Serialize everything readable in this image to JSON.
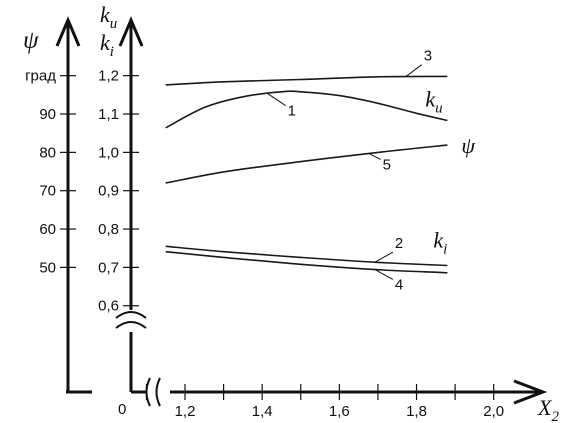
{
  "chart_data": {
    "type": "line",
    "xlabel": "X",
    "xlabel_sub": "2",
    "x_origin_label": "0",
    "x_ticks": [
      "1,2",
      "1,4",
      "1,6",
      "1,8",
      "2,0"
    ],
    "k_axis_title": {
      "line1": "k",
      "line1_sub": "u",
      "line2": "k",
      "line2_sub": "i"
    },
    "k_ticks": [
      "1,2",
      "1,1",
      "1,0",
      "0,9",
      "0,8",
      "0,7",
      "0,6"
    ],
    "psi_axis_title": "ψ",
    "psi_ticks": [
      "град",
      "90",
      "80",
      "70",
      "60",
      "50"
    ],
    "xlim": [
      1.06,
      2.12
    ],
    "ylim": [
      0.375,
      1.34
    ],
    "series": [
      {
        "name": "3",
        "axis": "k",
        "x": [
          1.15,
          1.3,
          1.5,
          1.7,
          1.88
        ],
        "y": [
          1.176,
          1.184,
          1.19,
          1.197,
          1.198
        ]
      },
      {
        "name": "1",
        "axis": "k",
        "label": "k",
        "label_sub": "u",
        "x": [
          1.15,
          1.25,
          1.35,
          1.45,
          1.5,
          1.6,
          1.7,
          1.8,
          1.88
        ],
        "y": [
          1.064,
          1.117,
          1.145,
          1.158,
          1.158,
          1.148,
          1.128,
          1.102,
          1.083
        ]
      },
      {
        "name": "5",
        "axis": "psi",
        "label": "ψ",
        "x": [
          1.15,
          1.3,
          1.5,
          1.7,
          1.88
        ],
        "y": [
          72,
          74.9,
          77.6,
          80,
          81.9
        ]
      },
      {
        "name": "2",
        "axis": "k",
        "label": "k",
        "label_sub": "i",
        "x": [
          1.15,
          1.3,
          1.5,
          1.7,
          1.88
        ],
        "y": [
          0.755,
          0.741,
          0.726,
          0.713,
          0.705
        ]
      },
      {
        "name": "4",
        "axis": "k",
        "x": [
          1.15,
          1.3,
          1.5,
          1.7,
          1.88
        ],
        "y": [
          0.741,
          0.726,
          0.708,
          0.694,
          0.686
        ]
      }
    ]
  }
}
